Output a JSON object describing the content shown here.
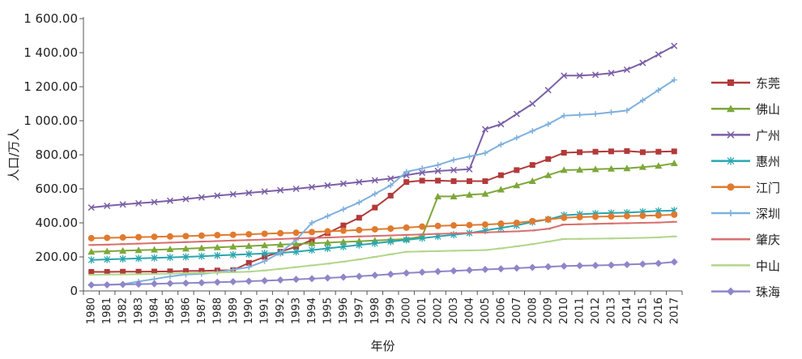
{
  "chart_data": {
    "type": "line",
    "title": "",
    "xlabel": "年份",
    "ylabel": "人口/万人",
    "ylim": [
      0,
      1600
    ],
    "yticks": [
      0,
      200,
      400,
      600,
      800,
      1000,
      1200,
      1400,
      1600
    ],
    "ytick_labels": [
      "0",
      "200.00",
      "400.00",
      "600.00",
      "800.00",
      "1 000.00",
      "1 200.00",
      "1 400.00",
      "1 600.00"
    ],
    "grid": false,
    "legend_position": "right",
    "x": [
      "1980",
      "1981",
      "1982",
      "1983",
      "1984",
      "1985",
      "1986",
      "1987",
      "1988",
      "1989",
      "1990",
      "1991",
      "1992",
      "1993",
      "1994",
      "1995",
      "1996",
      "1997",
      "1998",
      "1999",
      "2000",
      "2001",
      "2002",
      "2003",
      "2004",
      "2005",
      "2006",
      "2007",
      "2008",
      "2009",
      "2010",
      "2011",
      "2012",
      "2013",
      "2014",
      "2015",
      "2016",
      "2017"
    ],
    "series": [
      {
        "name": "东莞",
        "color": "#b23a3a",
        "marker": "square",
        "values": [
          112,
          112,
          113,
          113,
          114,
          115,
          117,
          118,
          120,
          122,
          165,
          200,
          230,
          260,
          300,
          340,
          385,
          430,
          490,
          560,
          640,
          648,
          648,
          645,
          645,
          645,
          680,
          710,
          740,
          775,
          812,
          815,
          818,
          820,
          822,
          815,
          818,
          820
        ]
      },
      {
        "name": "佛山",
        "color": "#7da73a",
        "marker": "triangle",
        "values": [
          230,
          233,
          236,
          239,
          242,
          245,
          248,
          252,
          256,
          260,
          264,
          268,
          272,
          276,
          280,
          284,
          288,
          292,
          296,
          300,
          305,
          320,
          555,
          555,
          565,
          570,
          595,
          620,
          645,
          680,
          710,
          712,
          715,
          718,
          720,
          728,
          735,
          750
        ]
      },
      {
        "name": "广州",
        "color": "#7a5fa6",
        "marker": "x",
        "values": [
          490,
          500,
          508,
          515,
          522,
          530,
          540,
          550,
          560,
          568,
          576,
          584,
          592,
          600,
          610,
          620,
          630,
          640,
          650,
          660,
          680,
          695,
          705,
          710,
          715,
          950,
          980,
          1040,
          1100,
          1180,
          1265,
          1265,
          1270,
          1280,
          1300,
          1340,
          1390,
          1440
        ]
      },
      {
        "name": "惠州",
        "color": "#2aa6b0",
        "marker": "asterisk",
        "values": [
          182,
          185,
          188,
          191,
          194,
          197,
          200,
          204,
          208,
          212,
          216,
          220,
          224,
          230,
          240,
          250,
          260,
          270,
          280,
          290,
          300,
          310,
          320,
          330,
          340,
          355,
          370,
          385,
          405,
          420,
          445,
          450,
          455,
          458,
          460,
          465,
          470,
          472
        ]
      },
      {
        "name": "江门",
        "color": "#e07a2e",
        "marker": "circle",
        "values": [
          310,
          312,
          314,
          316,
          318,
          320,
          322,
          325,
          328,
          330,
          333,
          336,
          339,
          342,
          346,
          350,
          354,
          358,
          362,
          366,
          372,
          378,
          382,
          385,
          387,
          390,
          395,
          400,
          410,
          420,
          430,
          434,
          436,
          438,
          440,
          442,
          444,
          448
        ]
      },
      {
        "name": "深圳",
        "color": "#7fb0de",
        "marker": "plus",
        "values": [
          33,
          36,
          40,
          55,
          70,
          85,
          96,
          100,
          110,
          125,
          140,
          175,
          225,
          300,
          400,
          440,
          480,
          520,
          570,
          620,
          700,
          720,
          740,
          770,
          790,
          810,
          860,
          900,
          940,
          980,
          1030,
          1035,
          1040,
          1050,
          1060,
          1120,
          1180,
          1240
        ]
      },
      {
        "name": "肇庆",
        "color": "#d86f6f",
        "marker": "dash",
        "values": [
          270,
          272,
          275,
          278,
          281,
          284,
          287,
          290,
          293,
          296,
          299,
          302,
          305,
          308,
          311,
          314,
          317,
          320,
          323,
          326,
          329,
          332,
          335,
          338,
          341,
          344,
          347,
          350,
          355,
          365,
          390,
          392,
          394,
          396,
          398,
          400,
          402,
          406
        ]
      },
      {
        "name": "中山",
        "color": "#b2d68a",
        "marker": "dash",
        "values": [
          95,
          96,
          97,
          98,
          100,
          102,
          104,
          106,
          108,
          110,
          113,
          120,
          130,
          140,
          150,
          160,
          172,
          185,
          200,
          215,
          230,
          232,
          234,
          236,
          238,
          240,
          250,
          262,
          275,
          290,
          305,
          306,
          307,
          308,
          310,
          312,
          315,
          320
        ]
      },
      {
        "name": "珠海",
        "color": "#8e86c8",
        "marker": "diamond",
        "values": [
          35,
          36,
          38,
          40,
          42,
          44,
          46,
          48,
          51,
          54,
          57,
          60,
          64,
          68,
          72,
          76,
          81,
          86,
          92,
          98,
          105,
          110,
          114,
          118,
          122,
          126,
          130,
          134,
          138,
          142,
          146,
          148,
          150,
          152,
          155,
          158,
          162,
          170
        ]
      }
    ]
  }
}
